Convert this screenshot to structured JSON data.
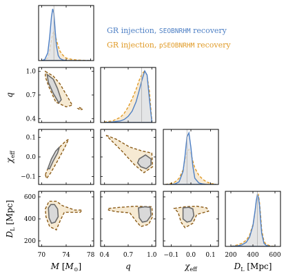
{
  "chart_data": {
    "type": "corner",
    "parameters": [
      "M",
      "q",
      "chi_eff",
      "D_L"
    ],
    "axis_labels": {
      "M": {
        "main": "M",
        "unit_pre": " [",
        "unit_sym": "M",
        "unit_sub": "⊙",
        "unit_post": "]"
      },
      "q": {
        "main": "q"
      },
      "chi_eff": {
        "main": "χ",
        "sub": "eff"
      },
      "D_L": {
        "main": "D",
        "sub": "L",
        "unit_post": " [Mpc]"
      }
    },
    "ranges": {
      "M": [
        69.5,
        78.5
      ],
      "q": [
        0.35,
        1.05
      ],
      "chi_eff": [
        -0.14,
        0.14
      ],
      "D_L": [
        150,
        650
      ]
    },
    "ticks": {
      "M": {
        "values": [
          70,
          74,
          78
        ],
        "labels": [
          "70",
          "74",
          "78"
        ]
      },
      "q": {
        "values": [
          0.4,
          0.7,
          1.0
        ],
        "labels": [
          "0.4",
          "0.7",
          "1.0"
        ]
      },
      "q_y": {
        "values": [
          0.4,
          0.7,
          1.0
        ],
        "labels": [
          "0.4",
          "0.7",
          "1.0"
        ]
      },
      "chi_eff": {
        "values": [
          -0.1,
          0.0,
          0.1
        ],
        "labels": [
          "−0.1",
          "0.0",
          "0.1"
        ]
      },
      "chi_y": {
        "values": [
          -0.1,
          0.0,
          0.1
        ],
        "labels": [
          "−0.1",
          "0.0",
          "0.1"
        ]
      },
      "D_L": {
        "values": [
          200,
          400,
          600
        ],
        "labels": [
          "200",
          "400",
          "600"
        ]
      },
      "D_L_y": {
        "values": [
          200,
          400,
          600
        ],
        "labels": [
          "200",
          "400",
          "600"
        ]
      }
    },
    "series": [
      {
        "name": "GR injection, SEOBNRHM recovery",
        "name_prefix": "GR injection, ",
        "name_code": "SEOBNRHM",
        "name_suffix": " recovery",
        "color": "#4d7fc4",
        "style": "solid"
      },
      {
        "name": "GR injection, pSEOBNRHM recovery",
        "name_prefix": "GR injection, ",
        "name_code": "pSEOBNRHM",
        "name_suffix": " recovery",
        "color": "#e09a26",
        "style": "dashed"
      }
    ],
    "injected_values": {
      "M": 72.0,
      "q": 0.87,
      "chi_eff": -0.02,
      "D_L": 440
    },
    "marginals": {
      "M": {
        "grid": [
          70.0,
          70.5,
          71.0,
          71.3,
          71.6,
          71.8,
          72.0,
          72.2,
          72.4,
          72.7,
          73.0,
          73.5,
          74.0,
          75.0,
          76.0,
          78.0
        ],
        "s1": [
          0.0,
          0.02,
          0.15,
          0.45,
          0.85,
          1.0,
          0.92,
          0.6,
          0.3,
          0.1,
          0.04,
          0.01,
          0.0,
          0.0,
          0.0,
          0.0
        ],
        "s2": [
          0.0,
          0.01,
          0.05,
          0.18,
          0.4,
          0.52,
          0.56,
          0.5,
          0.4,
          0.28,
          0.18,
          0.1,
          0.05,
          0.02,
          0.01,
          0.0
        ]
      },
      "q": {
        "grid": [
          0.4,
          0.5,
          0.6,
          0.65,
          0.7,
          0.75,
          0.8,
          0.84,
          0.88,
          0.91,
          0.94,
          0.97,
          1.0
        ],
        "s1": [
          0.0,
          0.01,
          0.03,
          0.06,
          0.12,
          0.22,
          0.4,
          0.62,
          0.85,
          1.0,
          0.92,
          0.45,
          0.02
        ],
        "s2": [
          0.01,
          0.03,
          0.1,
          0.18,
          0.3,
          0.46,
          0.64,
          0.82,
          0.95,
          1.0,
          0.9,
          0.6,
          0.05
        ]
      },
      "chi_eff": {
        "grid": [
          -0.13,
          -0.1,
          -0.08,
          -0.06,
          -0.04,
          -0.03,
          -0.02,
          -0.01,
          0.0,
          0.01,
          0.02,
          0.04,
          0.06,
          0.08,
          0.1,
          0.13
        ],
        "s1": [
          0.0,
          0.0,
          0.01,
          0.05,
          0.25,
          0.55,
          0.92,
          1.0,
          0.72,
          0.35,
          0.12,
          0.03,
          0.01,
          0.0,
          0.0,
          0.0
        ],
        "s2": [
          0.0,
          0.02,
          0.05,
          0.12,
          0.28,
          0.45,
          0.62,
          0.68,
          0.6,
          0.45,
          0.32,
          0.18,
          0.1,
          0.05,
          0.02,
          0.0
        ]
      },
      "D_L": {
        "grid": [
          200,
          260,
          300,
          340,
          370,
          400,
          420,
          430,
          440,
          450,
          460,
          470,
          480,
          500,
          520,
          560,
          600
        ],
        "s1": [
          0.0,
          0.01,
          0.03,
          0.08,
          0.18,
          0.4,
          0.7,
          0.88,
          1.0,
          0.95,
          0.8,
          0.5,
          0.25,
          0.06,
          0.02,
          0.0,
          0.0
        ],
        "s2": [
          0.0,
          0.03,
          0.06,
          0.12,
          0.22,
          0.42,
          0.68,
          0.85,
          0.96,
          1.0,
          0.85,
          0.6,
          0.32,
          0.1,
          0.04,
          0.01,
          0.0
        ]
      }
    },
    "contours": {
      "M_q": {
        "s1": [
          [
            70.9,
            0.96
          ],
          [
            71.9,
            0.9
          ],
          [
            72.6,
            0.78
          ],
          [
            73.2,
            0.64
          ],
          [
            72.8,
            0.6
          ],
          [
            71.9,
            0.72
          ],
          [
            71.1,
            0.86
          ]
        ],
        "s2": [
          [
            70.6,
            1.0
          ],
          [
            71.9,
            0.94
          ],
          [
            73.0,
            0.84
          ],
          [
            74.2,
            0.68
          ],
          [
            75.0,
            0.57
          ],
          [
            74.0,
            0.55
          ],
          [
            72.3,
            0.61
          ],
          [
            71.2,
            0.8
          ],
          [
            70.6,
            0.93
          ]
        ],
        "s2_island": [
          [
            76.2,
            0.54
          ],
          [
            76.7,
            0.52
          ],
          [
            76.3,
            0.51
          ],
          [
            75.9,
            0.53
          ]
        ]
      },
      "M_chi": {
        "s1": [
          [
            71.0,
            -0.06
          ],
          [
            71.6,
            -0.01
          ],
          [
            72.3,
            0.03
          ],
          [
            72.9,
            0.05
          ],
          [
            72.6,
            0.02
          ],
          [
            71.9,
            -0.02
          ],
          [
            71.3,
            -0.06
          ]
        ],
        "s2": [
          [
            70.6,
            -0.09
          ],
          [
            71.4,
            -0.03
          ],
          [
            72.6,
            0.04
          ],
          [
            73.9,
            0.08
          ],
          [
            74.4,
            0.09
          ],
          [
            73.8,
            0.05
          ],
          [
            72.6,
            -0.02
          ],
          [
            71.5,
            -0.08
          ],
          [
            70.8,
            -0.11
          ]
        ]
      },
      "q_chi": {
        "s1": [
          [
            0.84,
            -0.01
          ],
          [
            0.92,
            0.01
          ],
          [
            0.99,
            -0.01
          ],
          [
            0.99,
            -0.04
          ],
          [
            0.93,
            -0.06
          ],
          [
            0.86,
            -0.05
          ],
          [
            0.82,
            -0.03
          ]
        ],
        "s2": [
          [
            0.42,
            0.11
          ],
          [
            0.55,
            0.09
          ],
          [
            0.72,
            0.05
          ],
          [
            0.88,
            0.03
          ],
          [
            1.0,
            0.02
          ],
          [
            1.01,
            -0.05
          ],
          [
            0.9,
            -0.08
          ],
          [
            0.78,
            -0.04
          ],
          [
            0.62,
            0.03
          ],
          [
            0.47,
            0.09
          ]
        ]
      },
      "M_D": {
        "s1": [
          [
            71.1,
            500
          ],
          [
            71.5,
            530
          ],
          [
            72.1,
            530
          ],
          [
            72.6,
            490
          ],
          [
            72.7,
            420
          ],
          [
            72.2,
            370
          ],
          [
            71.6,
            360
          ],
          [
            71.2,
            410
          ]
        ],
        "s2": [
          [
            70.6,
            490
          ],
          [
            71.2,
            560
          ],
          [
            72.4,
            560
          ],
          [
            73.4,
            520
          ],
          [
            75.4,
            480
          ],
          [
            76.6,
            480
          ],
          [
            76.3,
            460
          ],
          [
            73.7,
            460
          ],
          [
            73.0,
            380
          ],
          [
            72.4,
            300
          ],
          [
            71.3,
            330
          ],
          [
            70.7,
            420
          ]
        ]
      },
      "q_D": {
        "s1": [
          [
            0.83,
            500
          ],
          [
            0.91,
            510
          ],
          [
            0.98,
            505
          ],
          [
            0.99,
            430
          ],
          [
            0.94,
            380
          ],
          [
            0.88,
            370
          ],
          [
            0.84,
            410
          ]
        ],
        "s2": [
          [
            0.45,
            495
          ],
          [
            0.6,
            505
          ],
          [
            0.8,
            515
          ],
          [
            1.0,
            510
          ],
          [
            1.01,
            420
          ],
          [
            0.96,
            350
          ],
          [
            0.86,
            330
          ],
          [
            0.8,
            380
          ],
          [
            0.72,
            455
          ],
          [
            0.55,
            465
          ],
          [
            0.45,
            480
          ]
        ]
      },
      "chi_D": {
        "s1": [
          [
            -0.04,
            500
          ],
          [
            -0.01,
            505
          ],
          [
            0.01,
            490
          ],
          [
            0.015,
            430
          ],
          [
            0.0,
            380
          ],
          [
            -0.02,
            370
          ],
          [
            -0.04,
            400
          ]
        ],
        "s2": [
          [
            -0.085,
            495
          ],
          [
            -0.03,
            510
          ],
          [
            0.03,
            515
          ],
          [
            0.08,
            500
          ],
          [
            0.09,
            470
          ],
          [
            0.03,
            440
          ],
          [
            0.01,
            360
          ],
          [
            -0.03,
            320
          ],
          [
            -0.05,
            370
          ],
          [
            -0.065,
            460
          ]
        ]
      }
    }
  }
}
